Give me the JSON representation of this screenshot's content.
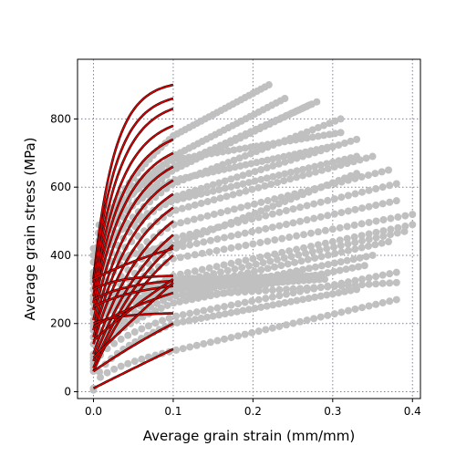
{
  "chart_data": {
    "type": "scatter",
    "title": "",
    "xlabel": "Average grain strain (mm/mm)",
    "ylabel": "Average grain stress (MPa)",
    "xlim": [
      -0.02,
      0.41
    ],
    "ylim": [
      -20,
      975
    ],
    "xticks": [
      0.0,
      0.1,
      0.2,
      0.3,
      0.4
    ],
    "yticks": [
      0,
      200,
      400,
      600,
      800
    ],
    "xtick_labels": [
      "0.0",
      "0.1",
      "0.2",
      "0.3",
      "0.4"
    ],
    "ytick_labels": [
      "0",
      "200",
      "400",
      "600",
      "800"
    ],
    "grid": true,
    "legend": "none",
    "colors": {
      "measured": "#c0c0c0",
      "fit": "#e00000",
      "fit_edge": "#000000"
    },
    "series": [
      {
        "kind": "scatter",
        "color": "#c0c0c0",
        "curves": [
          {
            "s0": 330,
            "s1": 750,
            "s2": 900,
            "e_end": 0.22
          },
          {
            "s0": 320,
            "s1": 690,
            "s2": 860,
            "e_end": 0.24
          },
          {
            "s0": 300,
            "s1": 650,
            "s2": 840,
            "e_end": 0.27
          },
          {
            "s0": 280,
            "s1": 610,
            "s2": 800,
            "e_end": 0.31
          },
          {
            "s0": 260,
            "s1": 570,
            "s2": 740,
            "e_end": 0.33
          },
          {
            "s0": 240,
            "s1": 530,
            "s2": 690,
            "e_end": 0.35
          },
          {
            "s0": 210,
            "s1": 490,
            "s2": 650,
            "e_end": 0.37
          },
          {
            "s0": 180,
            "s1": 450,
            "s2": 610,
            "e_end": 0.38
          },
          {
            "s0": 160,
            "s1": 420,
            "s2": 560,
            "e_end": 0.38
          },
          {
            "s0": 140,
            "s1": 390,
            "s2": 520,
            "e_end": 0.4
          },
          {
            "s0": 110,
            "s1": 340,
            "s2": 490,
            "e_end": 0.4
          },
          {
            "s0": 100,
            "s1": 320,
            "s2": 470,
            "e_end": 0.39
          },
          {
            "s0": 90,
            "s1": 300,
            "s2": 440,
            "e_end": 0.37
          },
          {
            "s0": 80,
            "s1": 280,
            "s2": 400,
            "e_end": 0.35
          },
          {
            "s0": 70,
            "s1": 260,
            "s2": 370,
            "e_end": 0.34
          },
          {
            "s0": 60,
            "s1": 220,
            "s2": 350,
            "e_end": 0.38
          },
          {
            "s0": 200,
            "s1": 330,
            "s2": 340,
            "e_end": 0.28
          },
          {
            "s0": 270,
            "s1": 310,
            "s2": 340,
            "e_end": 0.26
          },
          {
            "s0": 190,
            "s1": 300,
            "s2": 330,
            "e_end": 0.29
          },
          {
            "s0": 230,
            "s1": 280,
            "s2": 320,
            "e_end": 0.38
          },
          {
            "s0": 10,
            "s1": 120,
            "s2": 270,
            "e_end": 0.38
          },
          {
            "s0": 5,
            "s1": 200,
            "s2": 300,
            "e_end": 0.33
          },
          {
            "s0": 340,
            "s1": 430,
            "s2": 640,
            "e_end": 0.33
          },
          {
            "s0": 400,
            "s1": 660,
            "s2": 850,
            "e_end": 0.28
          },
          {
            "s0": 420,
            "s1": 680,
            "s2": 760,
            "e_end": 0.31
          },
          {
            "s0": 380,
            "s1": 620,
            "s2": 720,
            "e_end": 0.3
          },
          {
            "s0": 350,
            "s1": 560,
            "s2": 690,
            "e_end": 0.33
          }
        ]
      },
      {
        "kind": "line",
        "color": "#e00000",
        "e_end": 0.1,
        "curves": [
          {
            "s0": 330,
            "s1": 900,
            "k": 38
          },
          {
            "s0": 320,
            "s1": 860,
            "k": 34
          },
          {
            "s0": 300,
            "s1": 830,
            "k": 30
          },
          {
            "s0": 280,
            "s1": 780,
            "k": 28
          },
          {
            "s0": 260,
            "s1": 740,
            "k": 26
          },
          {
            "s0": 240,
            "s1": 700,
            "k": 24
          },
          {
            "s0": 210,
            "s1": 660,
            "k": 22
          },
          {
            "s0": 180,
            "s1": 620,
            "k": 20
          },
          {
            "s0": 160,
            "s1": 580,
            "k": 18
          },
          {
            "s0": 140,
            "s1": 540,
            "k": 16
          },
          {
            "s0": 110,
            "s1": 500,
            "k": 14
          },
          {
            "s0": 90,
            "s1": 460,
            "k": 12
          },
          {
            "s0": 70,
            "s1": 430,
            "k": 11
          },
          {
            "s0": 60,
            "s1": 400,
            "k": 10
          },
          {
            "s0": 330,
            "s1": 420,
            "k": 6
          },
          {
            "s0": 300,
            "s1": 340,
            "k": 30
          },
          {
            "s0": 270,
            "s1": 325,
            "k": 20
          },
          {
            "s0": 250,
            "s1": 310,
            "k": 15
          },
          {
            "s0": 200,
            "s1": 230,
            "k": 30
          },
          {
            "s0": 190,
            "s1": 290,
            "k": 6
          },
          {
            "s0": 150,
            "s1": 330,
            "k": 3
          },
          {
            "s0": 100,
            "s1": 320,
            "k": 1
          },
          {
            "s0": 60,
            "s1": 200,
            "k": 3
          },
          {
            "s0": 10,
            "s1": 125,
            "k": 0.5
          }
        ]
      }
    ]
  }
}
